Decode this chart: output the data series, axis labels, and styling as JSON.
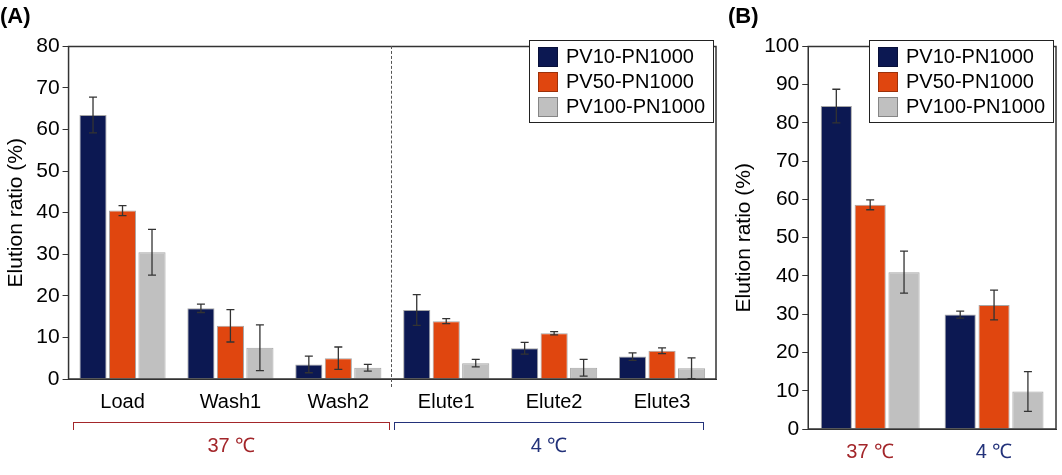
{
  "chart_data": [
    {
      "type": "bar",
      "title": "(A)",
      "ylabel": "Elution ratio (%)",
      "categories": [
        "Load",
        "Wash1",
        "Wash2",
        "Elute1",
        "Elute2",
        "Elute3"
      ],
      "series": [
        {
          "name": "PV10-PN1000",
          "color": "#0c1852",
          "values": [
            63.5,
            17,
            3.5,
            16.6,
            7.4,
            5.4
          ],
          "errors": [
            4.3,
            1,
            2,
            3.7,
            1.4,
            0.9
          ]
        },
        {
          "name": "PV50-PN1000",
          "color": "#e0460f",
          "values": [
            40.5,
            12.8,
            5,
            13.9,
            11,
            6.8
          ],
          "errors": [
            1.2,
            3.9,
            2.7,
            0.6,
            0.4,
            0.7
          ]
        },
        {
          "name": "PV100-PN1000",
          "color": "#c0c0c0",
          "values": [
            30.5,
            7.5,
            2.7,
            3.8,
            2.7,
            2.6
          ],
          "errors": [
            5.5,
            5.5,
            0.8,
            0.9,
            2,
            2.5
          ]
        }
      ],
      "ylim": [
        0,
        80
      ],
      "yticks": [
        0,
        10,
        20,
        30,
        40,
        50,
        60,
        70,
        80
      ],
      "grid": false,
      "legend": "top right",
      "annotations": [
        "37 ℃",
        "4 ℃"
      ]
    },
    {
      "type": "bar",
      "title": "(B)",
      "ylabel": "Elution ratio (%)",
      "categories": [
        "37 ℃",
        "4 ℃"
      ],
      "series": [
        {
          "name": "PV10-PN1000",
          "color": "#0c1852",
          "values": [
            84.4,
            29.9
          ],
          "errors": [
            4.4,
            0.9
          ]
        },
        {
          "name": "PV50-PN1000",
          "color": "#e0460f",
          "values": [
            58.6,
            32.4
          ],
          "errors": [
            1.3,
            3.9
          ]
        },
        {
          "name": "PV100-PN1000",
          "color": "#c0c0c0",
          "values": [
            41,
            9.8
          ],
          "errors": [
            5.5,
            5.2
          ]
        }
      ],
      "ylim": [
        0,
        100
      ],
      "yticks": [
        0,
        10,
        20,
        30,
        40,
        50,
        60,
        70,
        80,
        90,
        100
      ],
      "grid": false,
      "legend": "top right"
    }
  ]
}
